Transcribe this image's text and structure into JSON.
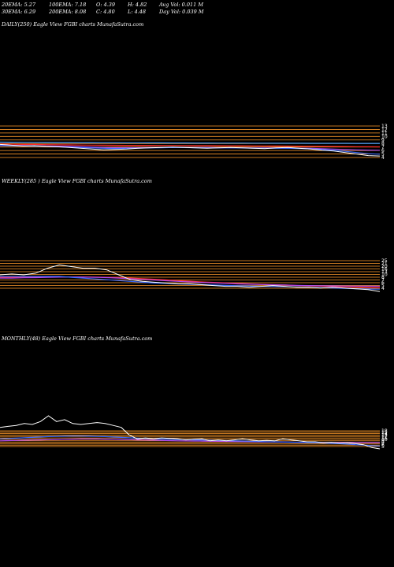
{
  "header": {
    "col1": [
      "20EMA: 5.27",
      "30EMA: 6.29"
    ],
    "col2": [
      "100EMA: 7.18",
      "200EMA: 8.08"
    ],
    "col3": [
      "O: 4.39",
      "C: 4.80"
    ],
    "col4": [
      "H: 4.82",
      "L: 4.48"
    ],
    "col5": [
      "Avg Vol: 0.011 M",
      "Day Vol: 0.039 M"
    ]
  },
  "colors": {
    "background": "#000000",
    "price": "#ffffff",
    "ema_short": "#3a6cff",
    "ema_mid": "#b04af0",
    "ema_long": "#ff2a2a",
    "ema_200": "#4aa0ff",
    "level": "#ff9a2a"
  },
  "chart_data": [
    {
      "type": "line",
      "title": "DAILY(250) Eagle  View  FGBI charts MunafaSutra.com",
      "ylevels": [
        "13",
        "12",
        "11",
        "10",
        "9",
        "8",
        "7",
        "6",
        "5",
        "4"
      ],
      "series": [
        {
          "values": [
            7.8,
            7.6,
            7.4,
            7.5,
            7.3,
            7.2,
            7.0,
            6.8,
            6.6,
            6.4,
            6.5,
            6.6,
            6.8,
            6.9,
            7.0,
            7.1,
            7.0,
            6.9,
            6.8,
            6.9,
            7.0,
            6.9,
            6.8,
            6.7,
            6.9,
            7.0,
            6.8,
            6.6,
            6.3,
            6.1,
            5.7,
            5.3,
            4.9,
            4.8
          ]
        },
        {
          "values": [
            7.5,
            7.45,
            7.4,
            7.35,
            7.3,
            7.2,
            7.1,
            7.0,
            6.9,
            6.8,
            6.75,
            6.8,
            6.85,
            6.9,
            6.95,
            7.0,
            6.98,
            6.95,
            6.9,
            6.9,
            6.9,
            6.88,
            6.85,
            6.8,
            6.8,
            6.8,
            6.75,
            6.65,
            6.5,
            6.3,
            6.0,
            5.7,
            5.4,
            5.27
          ]
        },
        {
          "values": [
            7.6,
            7.55,
            7.5,
            7.45,
            7.4,
            7.35,
            7.3,
            7.2,
            7.1,
            7.0,
            6.95,
            6.95,
            6.95,
            6.98,
            7.0,
            7.0,
            7.0,
            7.0,
            6.98,
            6.95,
            6.95,
            6.93,
            6.9,
            6.88,
            6.88,
            6.85,
            6.82,
            6.78,
            6.7,
            6.6,
            6.5,
            6.4,
            6.33,
            6.29
          ]
        },
        {
          "values": [
            7.9,
            7.85,
            7.8,
            7.8,
            7.75,
            7.7,
            7.68,
            7.65,
            7.62,
            7.6,
            7.58,
            7.56,
            7.55,
            7.55,
            7.54,
            7.53,
            7.52,
            7.5,
            7.5,
            7.48,
            7.46,
            7.45,
            7.44,
            7.42,
            7.4,
            7.38,
            7.36,
            7.34,
            7.3,
            7.28,
            7.25,
            7.22,
            7.2,
            7.18
          ]
        },
        {
          "values": [
            8.4,
            8.38,
            8.36,
            8.34,
            8.32,
            8.3,
            8.29,
            8.28,
            8.27,
            8.26,
            8.25,
            8.24,
            8.23,
            8.22,
            8.21,
            8.2,
            8.19,
            8.18,
            8.17,
            8.16,
            8.16,
            8.15,
            8.14,
            8.13,
            8.12,
            8.12,
            8.11,
            8.1,
            8.1,
            8.09,
            8.09,
            8.08,
            8.08,
            8.08
          ]
        }
      ]
    },
    {
      "type": "line",
      "title": "WEEKLY(285                    ) Eagle   View  FGBI charts MunafaSutra.com",
      "ylevels": [
        "25",
        "21",
        "20",
        "16",
        "13",
        "10",
        "8",
        "7",
        "6",
        "5",
        "4"
      ],
      "series": [
        {
          "values": [
            15,
            15.5,
            15,
            16,
            19,
            21,
            20,
            19,
            19,
            18,
            15,
            12,
            11,
            10.5,
            10,
            9.5,
            9.5,
            9,
            8.5,
            8,
            8,
            7.5,
            8,
            8.5,
            8,
            7.5,
            7.5,
            7,
            7.5,
            7,
            6.5,
            6,
            4.8
          ]
        },
        {
          "values": [
            14,
            14,
            14,
            14,
            14,
            14,
            13.5,
            13,
            12.5,
            12,
            11.5,
            11,
            10.5,
            10,
            9.8,
            9.5,
            9.3,
            9,
            8.8,
            8.6,
            8.4,
            8.2,
            8,
            7.9,
            7.8,
            7.6,
            7.4,
            7.2,
            7,
            6.8,
            6.6,
            6.4,
            6.29
          ]
        },
        {
          "values": [
            13,
            13,
            13.2,
            13.3,
            13.5,
            13.6,
            13.7,
            13.6,
            13.5,
            13.3,
            13,
            12.6,
            12.2,
            11.8,
            11.4,
            11,
            10.7,
            10.4,
            10.1,
            9.8,
            9.5,
            9.3,
            9.1,
            8.9,
            8.8,
            8.6,
            8.5,
            8.4,
            8.3,
            8.2,
            8.15,
            8.1,
            8.08
          ]
        },
        {
          "values": [
            13.5,
            13.5,
            13.6,
            13.6,
            13.6,
            13.7,
            13.7,
            13.7,
            13.6,
            13.5,
            13.3,
            13,
            12.7,
            12.3,
            11.9,
            11.5,
            11.1,
            10.7,
            10.4,
            10.1,
            9.8,
            9.5,
            9.2,
            9,
            8.8,
            8.5,
            8.3,
            8.1,
            7.9,
            7.7,
            7.5,
            7.3,
            7.18
          ]
        }
      ]
    },
    {
      "type": "line",
      "title": "MONTHLY(48) Eagle   View  FGBI charts MunafaSutra.com",
      "ylevels": [
        "18",
        "15",
        "14",
        "13",
        "12",
        "11",
        "10",
        "9",
        "8",
        "7",
        "6",
        "5"
      ],
      "series": [
        {
          "values": [
            16,
            16.5,
            17,
            18,
            17.5,
            19,
            22,
            19,
            20,
            18,
            17.5,
            18,
            18.5,
            18,
            17,
            16,
            12,
            10,
            10.5,
            10,
            10.5,
            10.2,
            10,
            9.5,
            9.8,
            10,
            9,
            9.5,
            9,
            9.5,
            10,
            9.5,
            9,
            9.2,
            9,
            10,
            9.5,
            9,
            8.5,
            8.5,
            8,
            8.2,
            7.8,
            8,
            7.5,
            7,
            5.5,
            4.8
          ]
        },
        {
          "values": [
            10,
            10.2,
            10.4,
            10.6,
            10.8,
            11,
            11.2,
            11.3,
            11.4,
            11.5,
            11.5,
            11.4,
            11.3,
            11.2,
            11,
            10.8,
            10.6,
            10.4,
            10.2,
            10,
            9.9,
            9.8,
            9.7,
            9.6,
            9.5,
            9.4,
            9.3,
            9.2,
            9.1,
            9,
            8.9,
            8.8,
            8.7,
            8.6,
            8.5,
            8.4,
            8.3,
            8.2,
            8.1,
            8,
            7.9,
            7.7,
            7.5,
            7.3,
            7,
            6.8,
            6.5,
            6.29
          ]
        },
        {
          "values": [
            9,
            9.1,
            9.2,
            9.3,
            9.4,
            9.5,
            9.6,
            9.7,
            9.8,
            9.9,
            10,
            10,
            10,
            9.9,
            9.8,
            9.7,
            9.6,
            9.5,
            9.4,
            9.3,
            9.2,
            9.1,
            9,
            8.95,
            8.9,
            8.85,
            8.8,
            8.75,
            8.7,
            8.65,
            8.6,
            8.55,
            8.5,
            8.45,
            8.4,
            8.35,
            8.3,
            8.25,
            8.2,
            8.15,
            8.1,
            8.1,
            8.1,
            8.09,
            8.09,
            8.08,
            8.08,
            8.08
          ]
        }
      ]
    }
  ]
}
